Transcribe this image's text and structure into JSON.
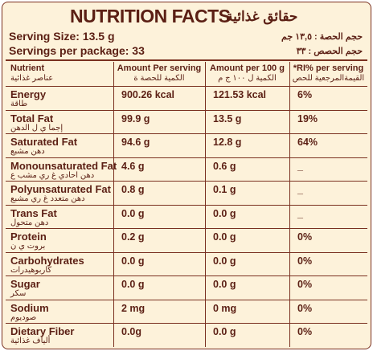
{
  "header": {
    "title": "NUTRITION FACTS",
    "title_ar": "حقائق غذائية",
    "serving_size": "Serving Size: 13.5 g",
    "serving_size_ar": "حجم الحصة : ١٣,٥ جم",
    "servings_per_package": "Servings per package: 33",
    "servings_per_package_ar": "حجم الحصص : ٣٣"
  },
  "table": {
    "columns": [
      {
        "en": "Nutrient",
        "ar": "عناصر غذائية"
      },
      {
        "en": "Amount Per serving",
        "ar": "الكمية للحصة ة"
      },
      {
        "en": "Amount per 100 g",
        "ar": "الكمية ل ١٠٠ ج م"
      },
      {
        "en": "*RI% per serving",
        "ar": "القيمةالمرجعية للحص"
      }
    ],
    "rows": [
      {
        "name": "Energy",
        "name_ar": "طاقة",
        "per_serving": "900.26 kcal",
        "per_100g": "121.53 kcal",
        "ri": "6%"
      },
      {
        "name": "Total Fat",
        "name_ar": "إجما ي ل الدهن",
        "per_serving": "99.9 g",
        "per_100g": "13.5 g",
        "ri": "19%"
      },
      {
        "name": "Saturated Fat",
        "name_ar": "دهن مشبع",
        "per_serving": "94.6 g",
        "per_100g": "12.8 g",
        "ri": "64%"
      },
      {
        "name": "Monounsaturated Fat",
        "name_ar": "دهن احادي غ ري مشب ع",
        "per_serving": "4.6 g",
        "per_100g": "0.6 g",
        "ri": "_"
      },
      {
        "name": "Polyunsaturated Fat",
        "name_ar": "دهن متعدد غ ري مشبع",
        "per_serving": "0.8 g",
        "per_100g": "0.1 g",
        "ri": "_"
      },
      {
        "name": "Trans Fat",
        "name_ar": "دهن متحول",
        "per_serving": "0.0 g",
        "per_100g": "0.0 g",
        "ri": "_"
      },
      {
        "name": "Protein",
        "name_ar": "بروت ي ن",
        "per_serving": "0.2 g",
        "per_100g": "0.0 g",
        "ri": "0%"
      },
      {
        "name": "Carbohydrates",
        "name_ar": "كاربوهيدرات",
        "per_serving": "0.0 g",
        "per_100g": "0.0 g",
        "ri": "0%"
      },
      {
        "name": "Sugar",
        "name_ar": "سكر",
        "per_serving": "0.0 g",
        "per_100g": "0.0 g",
        "ri": "0%"
      },
      {
        "name": "Sodium",
        "name_ar": "صوديوم",
        "per_serving": "2 mg",
        "per_100g": "0 mg",
        "ri": "0%"
      },
      {
        "name": "Dietary Fiber",
        "name_ar": "ألياف غذائية",
        "per_serving": "0.0g",
        "per_100g": "0.0 g",
        "ri": "0%"
      }
    ]
  }
}
